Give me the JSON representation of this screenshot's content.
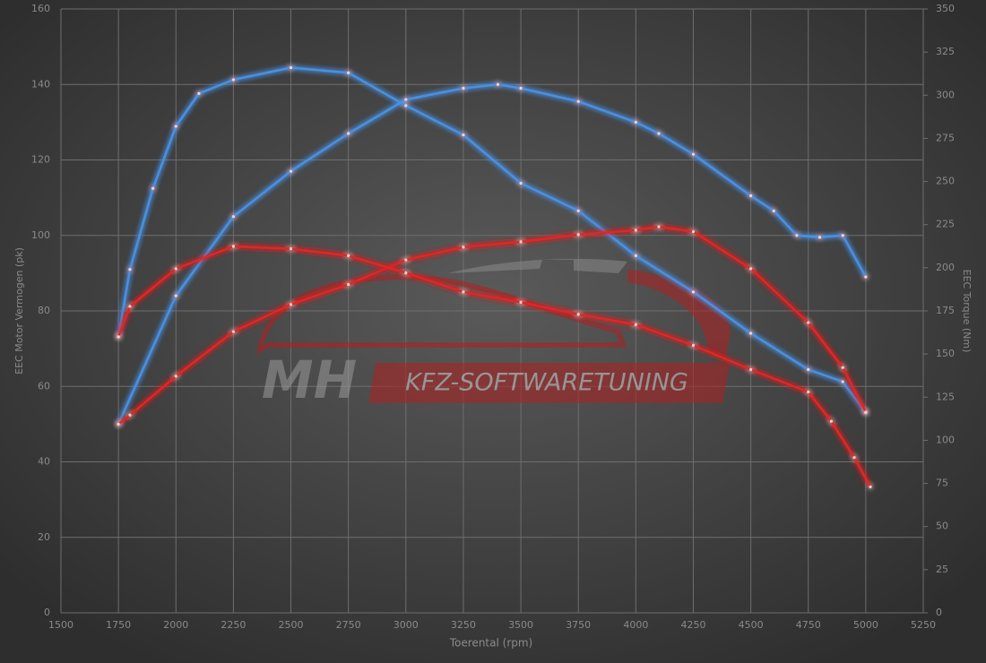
{
  "chart_data": {
    "type": "line",
    "x_label": "Toerental (rpm)",
    "y_label": "EEC Motor Vermogen (pk)",
    "y2_label": "EEC Torque (Nm)",
    "watermark": {
      "logo": "MH",
      "text": "KFZ-SOFTWARETUNING"
    },
    "xlim": [
      1500,
      5250
    ],
    "xticks": [
      1500,
      1750,
      2000,
      2250,
      2500,
      2750,
      3000,
      3250,
      3500,
      3750,
      4000,
      4250,
      4500,
      4750,
      5000,
      5250
    ],
    "ylim": [
      0,
      160
    ],
    "yticks": [
      0,
      20,
      40,
      60,
      80,
      100,
      120,
      140,
      160
    ],
    "y2lim": [
      0,
      350
    ],
    "y2ticks": [
      0,
      25,
      50,
      75,
      100,
      125,
      150,
      175,
      200,
      225,
      250,
      275,
      300,
      325,
      350
    ],
    "grid": true,
    "series": [
      {
        "color": "#4a90e2",
        "axis": "y",
        "x": [
          1750,
          2000,
          2250,
          2500,
          2750,
          3000,
          3250,
          3400,
          3500,
          3750,
          4000,
          4100,
          4250,
          4500,
          4600,
          4700,
          4800,
          4900,
          5000
        ],
        "values": [
          50,
          84,
          105,
          117,
          127,
          136,
          139,
          140,
          139,
          135.5,
          130,
          127,
          121.5,
          110.5,
          106.5,
          100,
          99.5,
          100,
          89
        ]
      },
      {
        "color": "#4a90e2",
        "axis": "y2",
        "x": [
          1750,
          1800,
          1900,
          2000,
          2100,
          2250,
          2500,
          2750,
          3000,
          3250,
          3500,
          3750,
          4000,
          4250,
          4500,
          4750,
          4900,
          5000
        ],
        "values": [
          160,
          199,
          246,
          282,
          301,
          309,
          316,
          313,
          294,
          277,
          249,
          233,
          207,
          186,
          162,
          141,
          134,
          116
        ]
      },
      {
        "color": "#e02525",
        "axis": "y",
        "x": [
          1750,
          1800,
          2000,
          2250,
          2500,
          2750,
          3000,
          3250,
          3500,
          3750,
          4000,
          4100,
          4250,
          4500,
          4750,
          4900,
          5000
        ],
        "values": [
          50,
          52.4,
          62.7,
          74.5,
          81.7,
          87,
          93.5,
          96.9,
          98.3,
          100.2,
          101.4,
          102.3,
          101,
          91.2,
          76.9,
          65,
          53.2
        ]
      },
      {
        "color": "#e02525",
        "axis": "y2",
        "x": [
          1750,
          1800,
          2000,
          2250,
          2500,
          2750,
          3000,
          3250,
          3500,
          3750,
          4000,
          4250,
          4500,
          4750,
          4850,
          4950,
          5020
        ],
        "values": [
          160,
          177.6,
          199.4,
          212.4,
          211,
          207,
          197,
          186,
          180,
          173,
          167,
          155,
          141,
          128,
          111,
          90,
          73
        ]
      }
    ]
  }
}
